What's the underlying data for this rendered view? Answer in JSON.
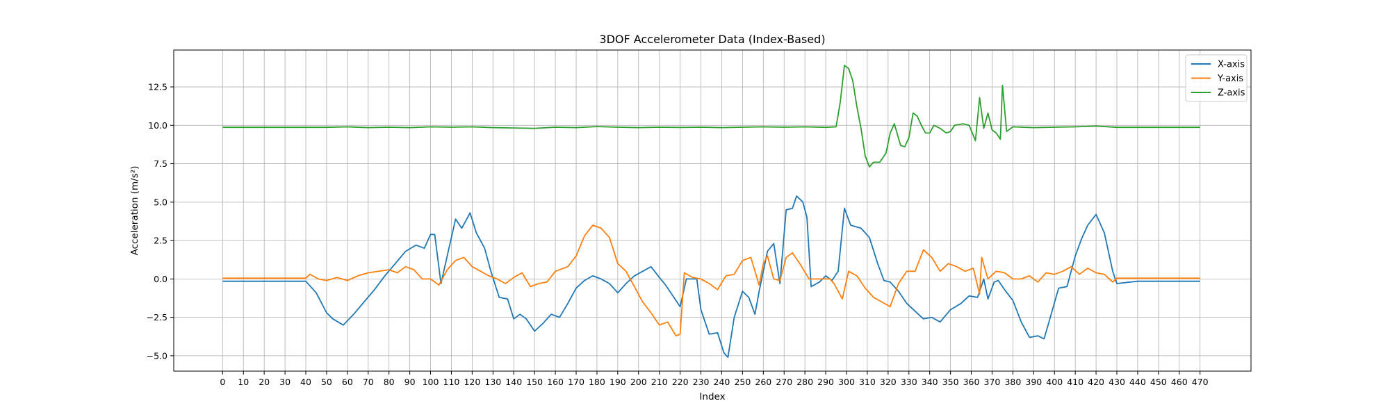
{
  "chart_data": {
    "type": "line",
    "title": "3DOF Accelerometer Data (Index-Based)",
    "xlabel": "Index",
    "ylabel": "Acceleration (m/s²)",
    "xlim": [
      -23.5,
      494.5
    ],
    "ylim": [
      -6.0,
      14.9
    ],
    "x_ticks": [
      0,
      10,
      20,
      30,
      40,
      50,
      60,
      70,
      80,
      90,
      100,
      110,
      120,
      130,
      140,
      150,
      160,
      170,
      180,
      190,
      200,
      210,
      220,
      230,
      240,
      250,
      260,
      270,
      280,
      290,
      300,
      310,
      320,
      330,
      340,
      350,
      360,
      370,
      380,
      390,
      400,
      410,
      420,
      430,
      440,
      450,
      460,
      470
    ],
    "y_ticks": [
      -5.0,
      -2.5,
      0.0,
      2.5,
      5.0,
      7.5,
      10.0,
      12.5
    ],
    "y_tick_labels": [
      "−5.0",
      "−2.5",
      "0.0",
      "2.5",
      "5.0",
      "7.5",
      "10.0",
      "12.5"
    ],
    "grid": true,
    "legend_position": "top-right",
    "series": [
      {
        "name": "X-axis",
        "color": "#1f77b4",
        "points": [
          [
            0,
            -0.15
          ],
          [
            30,
            -0.15
          ],
          [
            40,
            -0.15
          ],
          [
            45,
            -0.9
          ],
          [
            50,
            -2.2
          ],
          [
            53,
            -2.6
          ],
          [
            58,
            -3.0
          ],
          [
            63,
            -2.3
          ],
          [
            68,
            -1.5
          ],
          [
            73,
            -0.7
          ],
          [
            78,
            0.2
          ],
          [
            83,
            1.0
          ],
          [
            88,
            1.8
          ],
          [
            93,
            2.2
          ],
          [
            97,
            2.0
          ],
          [
            100,
            2.9
          ],
          [
            102,
            2.9
          ],
          [
            105,
            -0.3
          ],
          [
            108,
            1.5
          ],
          [
            112,
            3.9
          ],
          [
            115,
            3.3
          ],
          [
            119,
            4.3
          ],
          [
            122,
            3.0
          ],
          [
            126,
            2.0
          ],
          [
            129,
            0.5
          ],
          [
            133,
            -1.2
          ],
          [
            137,
            -1.3
          ],
          [
            140,
            -2.6
          ],
          [
            143,
            -2.3
          ],
          [
            146,
            -2.6
          ],
          [
            150,
            -3.4
          ],
          [
            154,
            -2.9
          ],
          [
            158,
            -2.3
          ],
          [
            162,
            -2.5
          ],
          [
            166,
            -1.6
          ],
          [
            170,
            -0.6
          ],
          [
            174,
            -0.1
          ],
          [
            178,
            0.2
          ],
          [
            182,
            0.0
          ],
          [
            186,
            -0.3
          ],
          [
            190,
            -0.9
          ],
          [
            194,
            -0.3
          ],
          [
            198,
            0.2
          ],
          [
            202,
            0.5
          ],
          [
            206,
            0.8
          ],
          [
            210,
            0.1
          ],
          [
            213,
            -0.4
          ],
          [
            217,
            -1.2
          ],
          [
            220,
            -1.8
          ],
          [
            223,
            0.0
          ],
          [
            228,
            0.0
          ],
          [
            230,
            -2.0
          ],
          [
            234,
            -3.6
          ],
          [
            238,
            -3.5
          ],
          [
            241,
            -4.8
          ],
          [
            243,
            -5.1
          ],
          [
            246,
            -2.5
          ],
          [
            250,
            -0.8
          ],
          [
            253,
            -1.2
          ],
          [
            256,
            -2.3
          ],
          [
            258,
            -0.8
          ],
          [
            262,
            1.8
          ],
          [
            265,
            2.3
          ],
          [
            268,
            -0.3
          ],
          [
            271,
            4.5
          ],
          [
            274,
            4.6
          ],
          [
            276,
            5.4
          ],
          [
            279,
            5.0
          ],
          [
            281,
            4.0
          ],
          [
            283,
            -0.5
          ],
          [
            287,
            -0.2
          ],
          [
            290,
            0.2
          ],
          [
            293,
            -0.1
          ],
          [
            296,
            0.5
          ],
          [
            299,
            4.6
          ],
          [
            302,
            3.5
          ],
          [
            307,
            3.3
          ],
          [
            311,
            2.7
          ],
          [
            315,
            1.0
          ],
          [
            318,
            -0.1
          ],
          [
            321,
            -0.2
          ],
          [
            325,
            -0.8
          ],
          [
            329,
            -1.6
          ],
          [
            333,
            -2.1
          ],
          [
            337,
            -2.6
          ],
          [
            341,
            -2.5
          ],
          [
            345,
            -2.8
          ],
          [
            350,
            -2.0
          ],
          [
            355,
            -1.6
          ],
          [
            359,
            -1.1
          ],
          [
            363,
            -1.2
          ],
          [
            366,
            0.0
          ],
          [
            368,
            -1.3
          ],
          [
            371,
            -0.2
          ],
          [
            373,
            -0.1
          ],
          [
            376,
            -0.7
          ],
          [
            380,
            -1.4
          ],
          [
            384,
            -2.8
          ],
          [
            388,
            -3.8
          ],
          [
            392,
            -3.7
          ],
          [
            395,
            -3.9
          ],
          [
            398,
            -2.5
          ],
          [
            402,
            -0.6
          ],
          [
            406,
            -0.5
          ],
          [
            410,
            1.5
          ],
          [
            413,
            2.6
          ],
          [
            416,
            3.5
          ],
          [
            420,
            4.2
          ],
          [
            424,
            3.0
          ],
          [
            428,
            0.5
          ],
          [
            430,
            -0.3
          ],
          [
            440,
            -0.15
          ],
          [
            470,
            -0.15
          ]
        ]
      },
      {
        "name": "Y-axis",
        "color": "#ff7f0e",
        "points": [
          [
            0,
            0.05
          ],
          [
            40,
            0.05
          ],
          [
            42,
            0.3
          ],
          [
            46,
            0.0
          ],
          [
            50,
            -0.1
          ],
          [
            55,
            0.1
          ],
          [
            60,
            -0.1
          ],
          [
            65,
            0.2
          ],
          [
            70,
            0.4
          ],
          [
            75,
            0.5
          ],
          [
            80,
            0.6
          ],
          [
            84,
            0.4
          ],
          [
            88,
            0.8
          ],
          [
            92,
            0.6
          ],
          [
            96,
            0.0
          ],
          [
            100,
            0.0
          ],
          [
            104,
            -0.4
          ],
          [
            108,
            0.6
          ],
          [
            112,
            1.2
          ],
          [
            116,
            1.4
          ],
          [
            120,
            0.8
          ],
          [
            124,
            0.5
          ],
          [
            128,
            0.2
          ],
          [
            132,
            0.0
          ],
          [
            136,
            -0.3
          ],
          [
            140,
            0.1
          ],
          [
            144,
            0.4
          ],
          [
            148,
            -0.5
          ],
          [
            152,
            -0.3
          ],
          [
            156,
            -0.2
          ],
          [
            160,
            0.5
          ],
          [
            166,
            0.8
          ],
          [
            170,
            1.5
          ],
          [
            174,
            2.8
          ],
          [
            178,
            3.5
          ],
          [
            182,
            3.3
          ],
          [
            186,
            2.7
          ],
          [
            190,
            1.0
          ],
          [
            194,
            0.5
          ],
          [
            198,
            -0.5
          ],
          [
            202,
            -1.5
          ],
          [
            206,
            -2.2
          ],
          [
            210,
            -3.0
          ],
          [
            214,
            -2.8
          ],
          [
            218,
            -3.7
          ],
          [
            220,
            -3.6
          ],
          [
            222,
            0.4
          ],
          [
            226,
            0.1
          ],
          [
            230,
            0.0
          ],
          [
            234,
            -0.3
          ],
          [
            238,
            -0.7
          ],
          [
            242,
            0.2
          ],
          [
            246,
            0.3
          ],
          [
            250,
            1.2
          ],
          [
            254,
            1.4
          ],
          [
            256,
            0.5
          ],
          [
            258,
            -0.4
          ],
          [
            260,
            1.0
          ],
          [
            262,
            1.5
          ],
          [
            265,
            0.0
          ],
          [
            268,
            -0.1
          ],
          [
            271,
            1.4
          ],
          [
            274,
            1.7
          ],
          [
            278,
            0.9
          ],
          [
            282,
            0.0
          ],
          [
            288,
            0.0
          ],
          [
            292,
            0.0
          ],
          [
            294,
            -0.3
          ],
          [
            298,
            -1.3
          ],
          [
            301,
            0.5
          ],
          [
            305,
            0.2
          ],
          [
            309,
            -0.6
          ],
          [
            313,
            -1.2
          ],
          [
            317,
            -1.5
          ],
          [
            321,
            -1.8
          ],
          [
            325,
            -0.3
          ],
          [
            329,
            0.5
          ],
          [
            333,
            0.5
          ],
          [
            337,
            1.9
          ],
          [
            341,
            1.4
          ],
          [
            345,
            0.5
          ],
          [
            349,
            1.0
          ],
          [
            353,
            0.8
          ],
          [
            357,
            0.5
          ],
          [
            361,
            0.7
          ],
          [
            364,
            -1.0
          ],
          [
            365,
            1.4
          ],
          [
            368,
            0.0
          ],
          [
            372,
            0.5
          ],
          [
            376,
            0.4
          ],
          [
            380,
            0.0
          ],
          [
            384,
            0.0
          ],
          [
            388,
            0.2
          ],
          [
            392,
            -0.2
          ],
          [
            396,
            0.4
          ],
          [
            400,
            0.3
          ],
          [
            404,
            0.5
          ],
          [
            408,
            0.8
          ],
          [
            412,
            0.3
          ],
          [
            416,
            0.7
          ],
          [
            420,
            0.4
          ],
          [
            424,
            0.3
          ],
          [
            428,
            -0.2
          ],
          [
            430,
            0.05
          ],
          [
            470,
            0.05
          ]
        ]
      },
      {
        "name": "Z-axis",
        "color": "#2ca02c",
        "points": [
          [
            0,
            9.87
          ],
          [
            50,
            9.87
          ],
          [
            60,
            9.9
          ],
          [
            70,
            9.85
          ],
          [
            80,
            9.88
          ],
          [
            90,
            9.85
          ],
          [
            100,
            9.9
          ],
          [
            110,
            9.88
          ],
          [
            120,
            9.9
          ],
          [
            130,
            9.85
          ],
          [
            140,
            9.83
          ],
          [
            150,
            9.8
          ],
          [
            160,
            9.88
          ],
          [
            170,
            9.85
          ],
          [
            180,
            9.92
          ],
          [
            190,
            9.88
          ],
          [
            200,
            9.85
          ],
          [
            210,
            9.88
          ],
          [
            220,
            9.86
          ],
          [
            230,
            9.88
          ],
          [
            240,
            9.85
          ],
          [
            250,
            9.88
          ],
          [
            260,
            9.9
          ],
          [
            270,
            9.88
          ],
          [
            280,
            9.9
          ],
          [
            290,
            9.87
          ],
          [
            295,
            9.9
          ],
          [
            297,
            11.5
          ],
          [
            299,
            13.9
          ],
          [
            301,
            13.7
          ],
          [
            303,
            12.9
          ],
          [
            305,
            11.2
          ],
          [
            307,
            9.8
          ],
          [
            309,
            8.0
          ],
          [
            311,
            7.3
          ],
          [
            313,
            7.6
          ],
          [
            316,
            7.6
          ],
          [
            319,
            8.2
          ],
          [
            321,
            9.5
          ],
          [
            323,
            10.1
          ],
          [
            326,
            8.7
          ],
          [
            328,
            8.6
          ],
          [
            330,
            9.2
          ],
          [
            332,
            10.8
          ],
          [
            334,
            10.6
          ],
          [
            336,
            10.0
          ],
          [
            338,
            9.5
          ],
          [
            340,
            9.5
          ],
          [
            342,
            10.0
          ],
          [
            345,
            9.8
          ],
          [
            348,
            9.5
          ],
          [
            350,
            9.6
          ],
          [
            352,
            10.0
          ],
          [
            356,
            10.1
          ],
          [
            359,
            10.0
          ],
          [
            362,
            9.0
          ],
          [
            364,
            11.8
          ],
          [
            366,
            9.8
          ],
          [
            368,
            10.8
          ],
          [
            370,
            9.7
          ],
          [
            372,
            9.5
          ],
          [
            374,
            9.1
          ],
          [
            375,
            12.6
          ],
          [
            377,
            9.6
          ],
          [
            380,
            9.9
          ],
          [
            390,
            9.85
          ],
          [
            400,
            9.88
          ],
          [
            410,
            9.9
          ],
          [
            420,
            9.95
          ],
          [
            430,
            9.87
          ],
          [
            470,
            9.87
          ]
        ]
      }
    ]
  }
}
